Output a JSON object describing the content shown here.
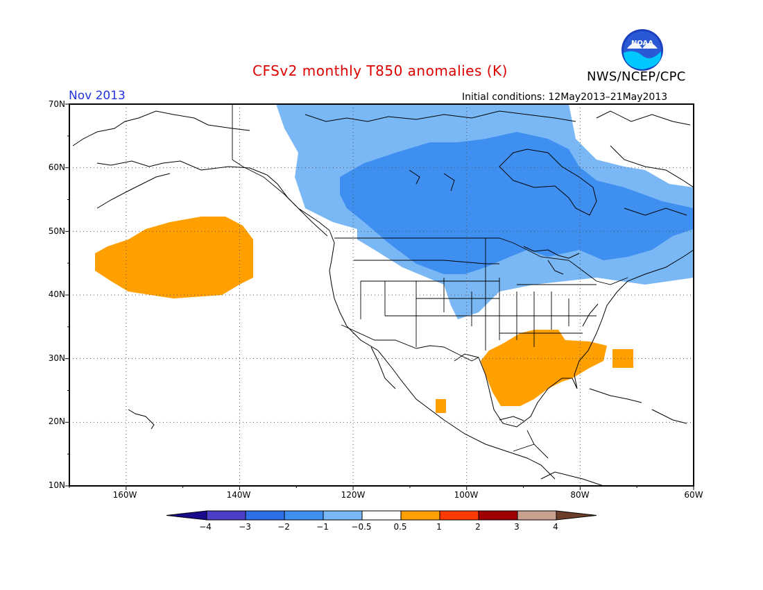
{
  "header": {
    "title": "CFSv2 monthly T850 anomalies (K)",
    "organization": "NWS/NCEP/CPC",
    "logo_text": "NOAA",
    "month": "Nov 2013",
    "initial_conditions": "Initial conditions: 12May2013–21May2013"
  },
  "axes": {
    "lat_labels": [
      "70N",
      "60N",
      "50N",
      "40N",
      "30N",
      "20N",
      "10N"
    ],
    "lon_labels": [
      "160W",
      "140W",
      "120W",
      "100W",
      "80W",
      "60W"
    ],
    "lat_range": [
      10,
      70
    ],
    "lon_range": [
      -170,
      -60
    ],
    "grid": true
  },
  "colorbar": {
    "labels": [
      "−4",
      "−3",
      "−2",
      "−1",
      "−0.5",
      "0.5",
      "1",
      "2",
      "3",
      "4"
    ],
    "colors": [
      "#1a0a8c",
      "#4b3fc8",
      "#2e6ee6",
      "#3f8ff0",
      "#7ab7f5",
      "#ffffff",
      "#ffa000",
      "#ff3a00",
      "#a00000",
      "#c8a090",
      "#6b3f2a"
    ]
  },
  "anomaly_colors": {
    "cold_strong": "#3f8ff0",
    "cold_weak": "#7ab7f5",
    "warm_weak": "#ffa000"
  }
}
